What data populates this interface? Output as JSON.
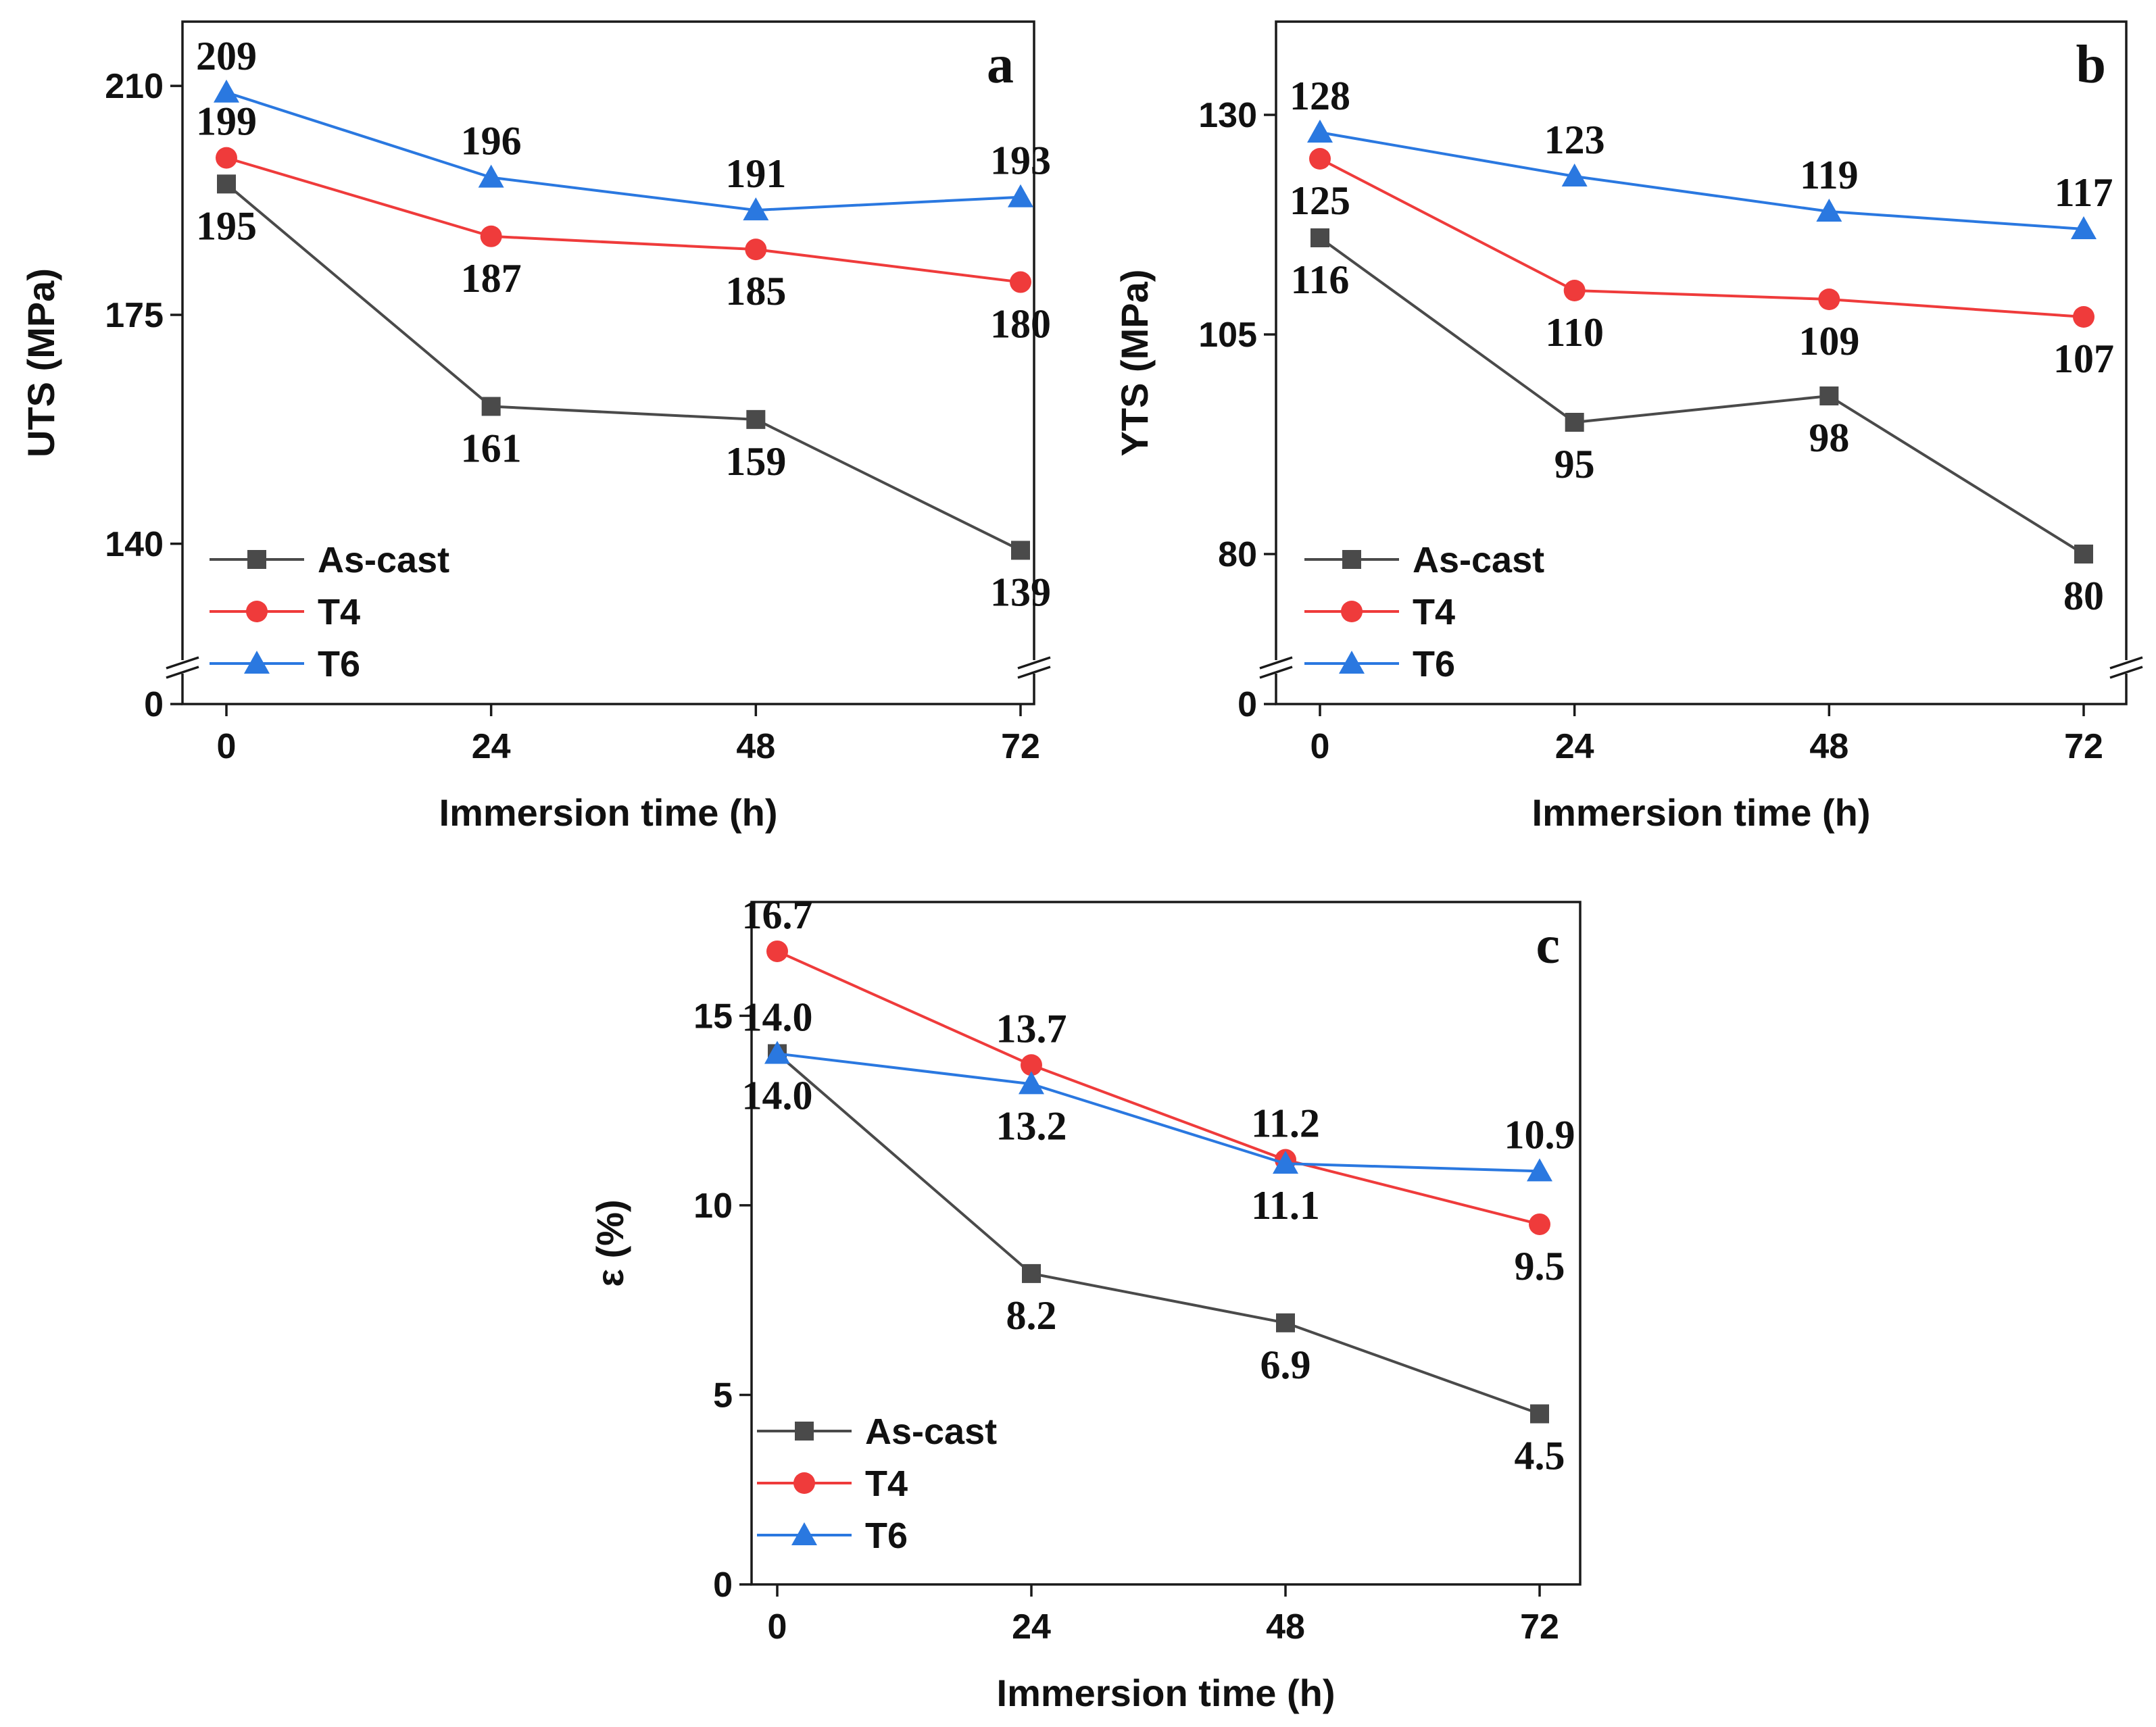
{
  "colors": {
    "as_cast": "#4a4a4a",
    "t4": "#ef3b3b",
    "t6": "#2a78e0"
  },
  "chart_data": [
    {
      "id": "a",
      "type": "line",
      "panel_label": "a",
      "xlabel": "Immersion time (h)",
      "ylabel": "UTS (MPa)",
      "x": [
        0,
        24,
        48,
        72
      ],
      "x_tick_labels": [
        "0",
        "24",
        "48",
        "72"
      ],
      "y_ticks": [
        140,
        175,
        210
      ],
      "y_tick_labels": [
        "140",
        "175",
        "210"
      ],
      "ylim": [
        125,
        219
      ],
      "axis_break": {
        "zero_label": "0"
      },
      "series": [
        {
          "name": "As-cast",
          "marker": "square",
          "values": [
            195,
            161,
            159,
            139
          ],
          "labels": [
            "195",
            "161",
            "159",
            "139"
          ],
          "label_pos": [
            "below",
            "below",
            "below",
            "below"
          ]
        },
        {
          "name": "T4",
          "marker": "circle",
          "values": [
            199,
            187,
            185,
            180
          ],
          "labels": [
            "199",
            "187",
            "185",
            "180"
          ],
          "label_pos": [
            "above",
            "below",
            "below",
            "below"
          ]
        },
        {
          "name": "T6",
          "marker": "triangle",
          "values": [
            209,
            196,
            191,
            193
          ],
          "labels": [
            "209",
            "196",
            "191",
            "193"
          ],
          "label_pos": [
            "above",
            "above",
            "above",
            "above"
          ]
        }
      ],
      "legend": [
        "As-cast",
        "T4",
        "T6"
      ]
    },
    {
      "id": "b",
      "type": "line",
      "panel_label": "b",
      "xlabel": "Immersion time (h)",
      "ylabel": "YTS (MPa)",
      "x": [
        0,
        24,
        48,
        72
      ],
      "x_tick_labels": [
        "0",
        "24",
        "48",
        "72"
      ],
      "y_ticks": [
        80,
        105,
        130
      ],
      "y_tick_labels": [
        "80",
        "105",
        "130"
      ],
      "ylim": [
        70,
        140
      ],
      "axis_break": {
        "zero_label": "0"
      },
      "series": [
        {
          "name": "As-cast",
          "marker": "square",
          "values": [
            116,
            95,
            98,
            80
          ],
          "labels": [
            "116",
            "95",
            "98",
            "80"
          ],
          "label_pos": [
            "below",
            "below",
            "below",
            "below"
          ]
        },
        {
          "name": "T4",
          "marker": "circle",
          "values": [
            125,
            110,
            109,
            107
          ],
          "labels": [
            "125",
            "110",
            "109",
            "107"
          ],
          "label_pos": [
            "below",
            "below",
            "below",
            "below"
          ]
        },
        {
          "name": "T6",
          "marker": "triangle",
          "values": [
            128,
            123,
            119,
            117
          ],
          "labels": [
            "128",
            "123",
            "119",
            "117"
          ],
          "label_pos": [
            "above",
            "above",
            "above",
            "above"
          ]
        }
      ],
      "legend": [
        "As-cast",
        "T4",
        "T6"
      ]
    },
    {
      "id": "c",
      "type": "line",
      "panel_label": "c",
      "xlabel": "Immersion time (h)",
      "ylabel": "ε (%)",
      "x": [
        0,
        24,
        48,
        72
      ],
      "x_tick_labels": [
        "0",
        "24",
        "48",
        "72"
      ],
      "y_ticks": [
        0,
        5,
        10,
        15
      ],
      "y_tick_labels": [
        "0",
        "5",
        "10",
        "15"
      ],
      "ylim": [
        0,
        18
      ],
      "series": [
        {
          "name": "As-cast",
          "marker": "square",
          "values": [
            14.0,
            8.2,
            6.9,
            4.5
          ],
          "labels": [
            "14.0",
            "8.2",
            "6.9",
            "4.5"
          ],
          "label_pos": [
            "below",
            "below",
            "below",
            "below"
          ]
        },
        {
          "name": "T4",
          "marker": "circle",
          "values": [
            16.7,
            13.7,
            11.2,
            9.5
          ],
          "labels": [
            "16.7",
            "13.7",
            "11.2",
            "9.5"
          ],
          "label_pos": [
            "above",
            "above",
            "above",
            "below"
          ]
        },
        {
          "name": "T6",
          "marker": "triangle",
          "values": [
            14.0,
            13.2,
            11.1,
            10.9
          ],
          "labels": [
            "14.0",
            "13.2",
            "11.1",
            "10.9"
          ],
          "label_pos": [
            "above",
            "below",
            "below",
            "above"
          ]
        }
      ],
      "legend": [
        "As-cast",
        "T4",
        "T6"
      ]
    }
  ]
}
